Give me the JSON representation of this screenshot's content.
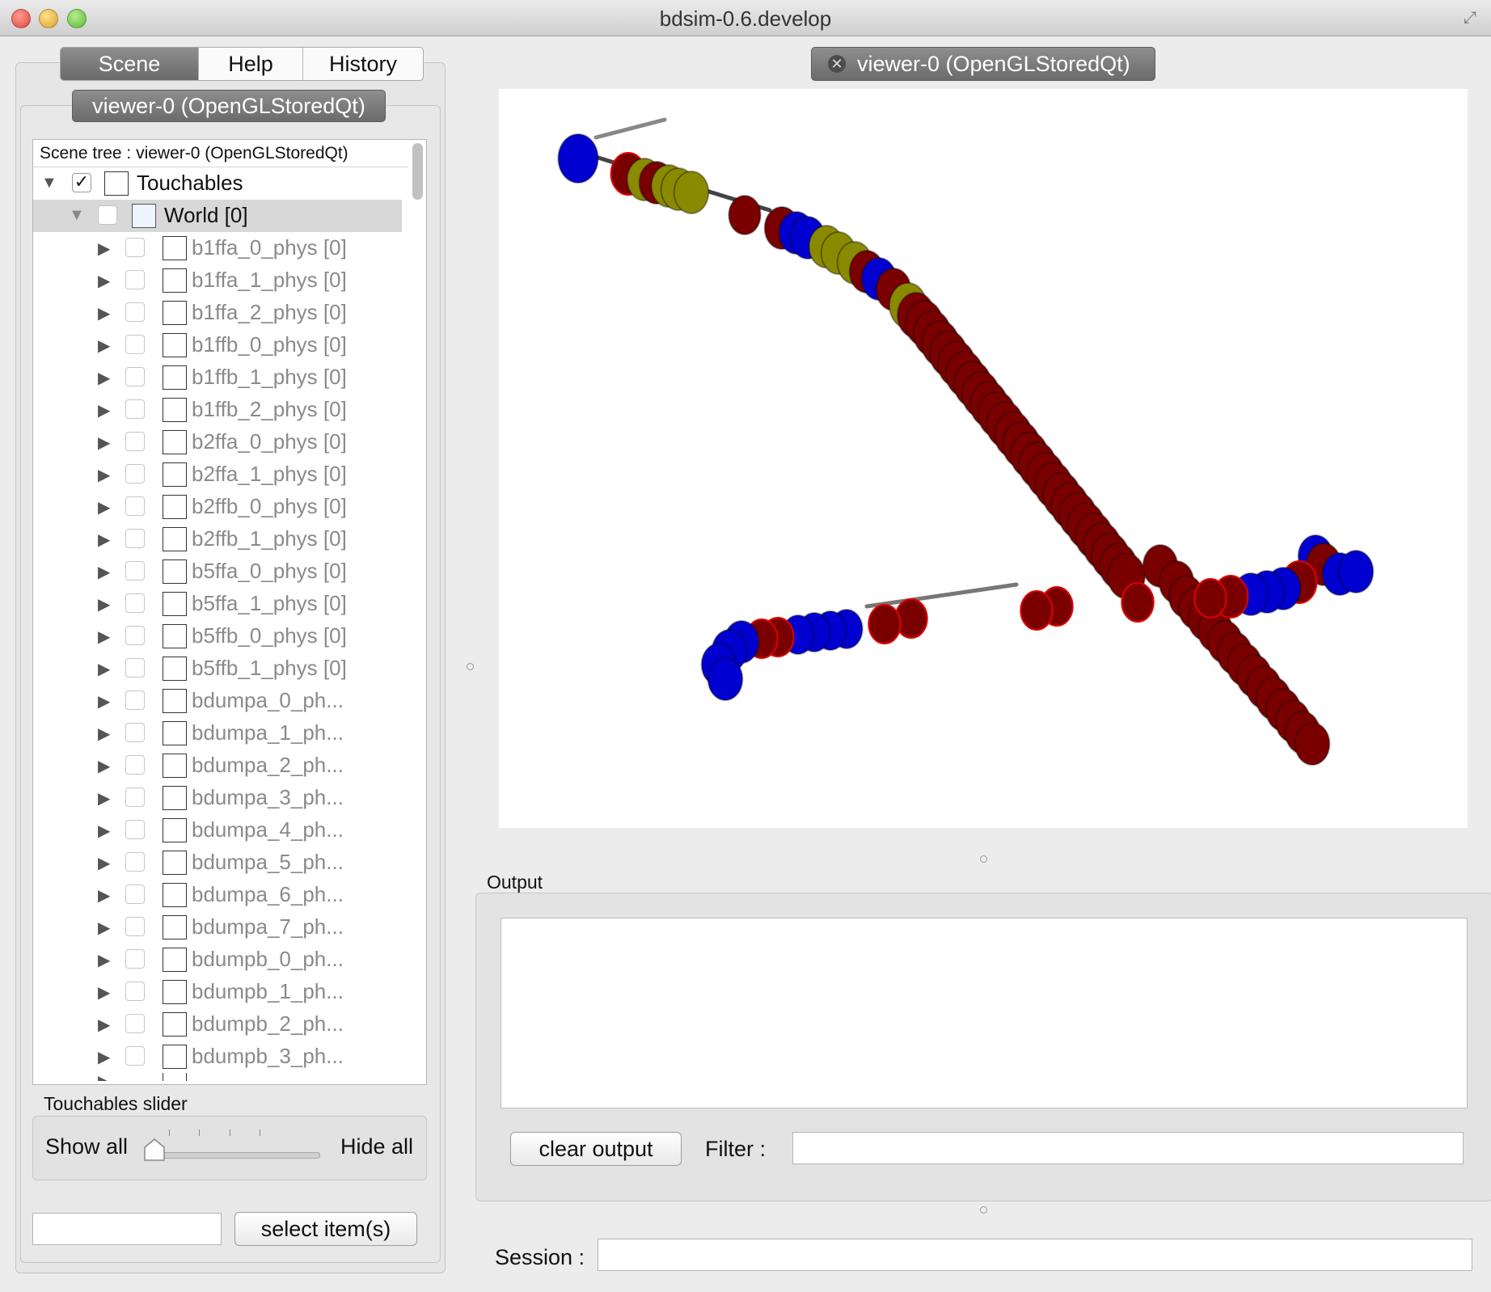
{
  "window": {
    "title": "bdsim-0.6.develop"
  },
  "left_tabs": {
    "scene_tree": "Scene tree",
    "help": "Help",
    "history": "History"
  },
  "viewer_tab_label": "viewer-0 (OpenGLStoredQt)",
  "tree": {
    "header": "Scene tree : viewer-0 (OpenGLStoredQt)",
    "root": {
      "label": "Touchables",
      "checked": true
    },
    "world": {
      "label": "World [0]"
    },
    "items": [
      "b1ffa_0_phys [0]",
      "b1ffa_1_phys [0]",
      "b1ffa_2_phys [0]",
      "b1ffb_0_phys [0]",
      "b1ffb_1_phys [0]",
      "b1ffb_2_phys [0]",
      "b2ffa_0_phys [0]",
      "b2ffa_1_phys [0]",
      "b2ffb_0_phys [0]",
      "b2ffb_1_phys [0]",
      "b5ffa_0_phys [0]",
      "b5ffa_1_phys [0]",
      "b5ffb_0_phys [0]",
      "b5ffb_1_phys [0]",
      "bdumpa_0_ph...",
      "bdumpa_1_ph...",
      "bdumpa_2_ph...",
      "bdumpa_3_ph...",
      "bdumpa_4_ph...",
      "bdumpa_5_ph...",
      "bdumpa_6_ph...",
      "bdumpa_7_ph...",
      "bdumpb_0_ph...",
      "bdumpb_1_ph...",
      "bdumpb_2_ph...",
      "bdumpb_3_ph..."
    ]
  },
  "slider": {
    "title": "Touchables slider",
    "show_all": "Show all",
    "hide_all": "Hide all",
    "value": 0
  },
  "select_button": "select item(s)",
  "output": {
    "label": "Output",
    "clear_button": "clear output",
    "filter_label": "Filter :",
    "filter_value": ""
  },
  "session": {
    "label": "Session :",
    "value": ""
  },
  "colors": {
    "dipole": "#7a0000",
    "dipole_edge": "#e00000",
    "quad": "#0000d0",
    "sext": "#8a8a00",
    "beampipe": "#444444"
  }
}
